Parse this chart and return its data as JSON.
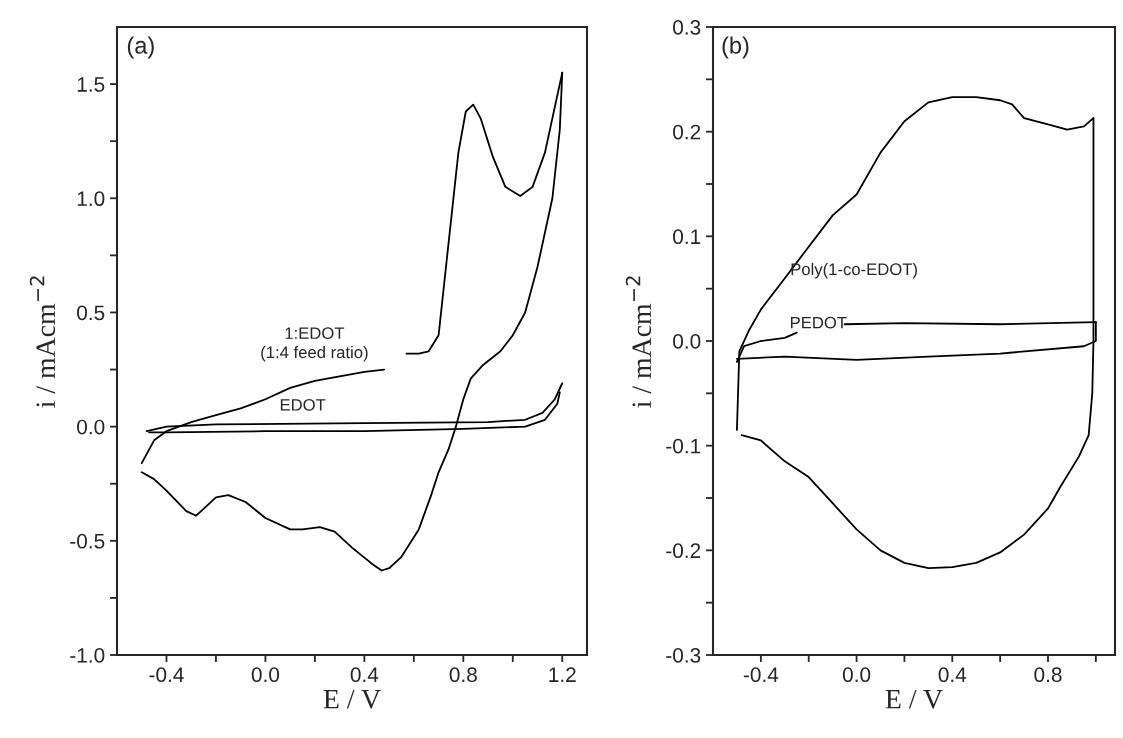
{
  "chart_data": [
    {
      "type": "line",
      "xlabel": "E / V",
      "ylabel": "i / mAcm$^{−2}$",
      "xlim": [
        -0.6,
        1.3
      ],
      "ylim": [
        -1.0,
        1.75
      ],
      "xticks": [
        {
          "value": -0.4,
          "label": "-0.4"
        },
        {
          "value": -0.2,
          "label": null
        },
        {
          "value": 0.0,
          "label": "0.0"
        },
        {
          "value": 0.2,
          "label": null
        },
        {
          "value": 0.4,
          "label": "0.4"
        },
        {
          "value": 0.6,
          "label": null
        },
        {
          "value": 0.8,
          "label": "0.8"
        },
        {
          "value": 1.0,
          "label": null
        },
        {
          "value": 1.2,
          "label": "1.2"
        }
      ],
      "yticks": [
        {
          "value": -1.0,
          "label": "-1.0"
        },
        {
          "value": -0.75,
          "label": null
        },
        {
          "value": -0.5,
          "label": "-0.5"
        },
        {
          "value": -0.25,
          "label": null
        },
        {
          "value": 0.0,
          "label": "0.0"
        },
        {
          "value": 0.25,
          "label": null
        },
        {
          "value": 0.5,
          "label": "0.5"
        },
        {
          "value": 0.75,
          "label": null
        },
        {
          "value": 1.0,
          "label": "1.0"
        },
        {
          "value": 1.25,
          "label": null
        },
        {
          "value": 1.5,
          "label": "1.5"
        }
      ],
      "annotations": [
        "(a)",
        "1:EDOT\n(1:4 feed ratio)",
        "EDOT"
      ],
      "series": [
        {
          "color": "#000000",
          "x": [
            -0.5,
            -0.45,
            -0.4,
            -0.3,
            -0.2,
            -0.1,
            0.0,
            0.1,
            0.2,
            0.3,
            0.4,
            0.48,
            null,
            0.57,
            0.62,
            0.66,
            0.7,
            0.72,
            0.75,
            0.78,
            0.81,
            0.84,
            0.87,
            0.92,
            0.97,
            1.03,
            1.08,
            1.13,
            1.17,
            1.2
          ],
          "values": [
            -0.16,
            -0.06,
            -0.02,
            0.02,
            0.05,
            0.08,
            0.12,
            0.17,
            0.2,
            0.22,
            0.24,
            0.25,
            null,
            0.32,
            0.32,
            0.33,
            0.4,
            0.6,
            0.9,
            1.2,
            1.38,
            1.41,
            1.35,
            1.18,
            1.05,
            1.01,
            1.05,
            1.2,
            1.4,
            1.55
          ]
        },
        {
          "color": "#000000",
          "x": [
            1.2,
            1.19,
            1.16,
            1.1,
            1.05,
            1.0,
            0.95,
            0.88,
            0.83,
            0.8,
            0.77,
            0.74,
            0.7,
            0.67,
            0.62,
            0.55,
            0.5,
            0.47,
            0.43,
            0.35,
            0.28,
            0.22,
            0.15,
            0.1,
            0.0,
            -0.08,
            -0.15,
            -0.2,
            -0.25,
            -0.28,
            -0.32,
            -0.4,
            -0.45,
            -0.5
          ],
          "values": [
            1.55,
            1.3,
            1.0,
            0.7,
            0.5,
            0.4,
            0.33,
            0.27,
            0.21,
            0.12,
            0.0,
            -0.1,
            -0.2,
            -0.3,
            -0.45,
            -0.57,
            -0.62,
            -0.63,
            -0.6,
            -0.53,
            -0.46,
            -0.44,
            -0.45,
            -0.45,
            -0.4,
            -0.33,
            -0.3,
            -0.31,
            -0.36,
            -0.39,
            -0.37,
            -0.28,
            -0.23,
            -0.2
          ]
        },
        {
          "color": "#000000",
          "x": [
            -0.48,
            -0.4,
            -0.2,
            0.4,
            0.9,
            1.05,
            1.12,
            1.17,
            1.2
          ],
          "values": [
            -0.02,
            0.0,
            0.01,
            0.015,
            0.02,
            0.03,
            0.06,
            0.12,
            0.19
          ]
        },
        {
          "color": "#000000",
          "x": [
            1.19,
            1.18,
            1.13,
            1.05,
            0.8,
            0.4,
            0.0,
            -0.4,
            -0.47
          ],
          "values": [
            0.15,
            0.1,
            0.03,
            0.0,
            -0.01,
            -0.02,
            -0.02,
            -0.025,
            -0.025
          ]
        }
      ]
    },
    {
      "type": "line",
      "xlabel": "E / V",
      "ylabel": "i / mAcm$^{−2}$",
      "xlim": [
        -0.6,
        1.08
      ],
      "ylim": [
        -0.3,
        0.3
      ],
      "xticks": [
        {
          "value": -0.4,
          "label": "-0.4"
        },
        {
          "value": -0.2,
          "label": null
        },
        {
          "value": 0.0,
          "label": "0.0"
        },
        {
          "value": 0.2,
          "label": null
        },
        {
          "value": 0.4,
          "label": "0.4"
        },
        {
          "value": 0.6,
          "label": null
        },
        {
          "value": 0.8,
          "label": "0.8"
        },
        {
          "value": 1.0,
          "label": null
        }
      ],
      "yticks": [
        {
          "value": -0.3,
          "label": "-0.3"
        },
        {
          "value": -0.25,
          "label": null
        },
        {
          "value": -0.2,
          "label": "-0.2"
        },
        {
          "value": -0.15,
          "label": null
        },
        {
          "value": -0.1,
          "label": "-0.1"
        },
        {
          "value": -0.05,
          "label": null
        },
        {
          "value": 0.0,
          "label": "0.0"
        },
        {
          "value": 0.05,
          "label": null
        },
        {
          "value": 0.1,
          "label": "0.1"
        },
        {
          "value": 0.15,
          "label": null
        },
        {
          "value": 0.2,
          "label": "0.2"
        },
        {
          "value": 0.25,
          "label": null
        },
        {
          "value": 0.3,
          "label": "0.3"
        }
      ],
      "annotations": [
        "(b)",
        "Poly(1-co-EDOT)",
        "PEDOT"
      ],
      "series": [
        {
          "color": "#000000",
          "x": [
            -0.5,
            -0.49,
            -0.45,
            -0.4,
            -0.3,
            -0.2,
            -0.1,
            0.0,
            0.1,
            0.2,
            0.3,
            0.4,
            0.5,
            0.6,
            0.65,
            0.7,
            0.8,
            0.88,
            0.95,
            0.99
          ],
          "values": [
            -0.085,
            -0.01,
            0.01,
            0.03,
            0.06,
            0.09,
            0.12,
            0.14,
            0.18,
            0.21,
            0.228,
            0.233,
            0.233,
            0.23,
            0.226,
            0.213,
            0.207,
            0.202,
            0.205,
            0.213
          ]
        },
        {
          "color": "#000000",
          "x": [
            0.99,
            0.99,
            0.985,
            0.97,
            0.93,
            0.85,
            0.8,
            0.7,
            0.6,
            0.5,
            0.4,
            0.3,
            0.2,
            0.1,
            0.0,
            -0.1,
            -0.2,
            -0.3,
            -0.4,
            -0.48
          ],
          "values": [
            0.213,
            0.0,
            -0.05,
            -0.09,
            -0.11,
            -0.14,
            -0.16,
            -0.185,
            -0.202,
            -0.212,
            -0.216,
            -0.217,
            -0.212,
            -0.2,
            -0.18,
            -0.155,
            -0.13,
            -0.115,
            -0.095,
            -0.09
          ]
        },
        {
          "color": "#000000",
          "x": [
            -0.5,
            -0.47,
            -0.4,
            -0.3,
            -0.25,
            null,
            -0.05,
            0.2,
            0.6,
            1.0
          ],
          "values": [
            -0.02,
            -0.005,
            0.0,
            0.003,
            0.008,
            null,
            0.016,
            0.017,
            0.016,
            0.018
          ]
        },
        {
          "color": "#000000",
          "x": [
            1.0,
            1.0,
            0.95,
            0.6,
            0.3,
            0.0,
            -0.3,
            -0.5
          ],
          "values": [
            0.018,
            0.0,
            -0.005,
            -0.012,
            -0.015,
            -0.018,
            -0.015,
            -0.017
          ]
        }
      ]
    }
  ]
}
